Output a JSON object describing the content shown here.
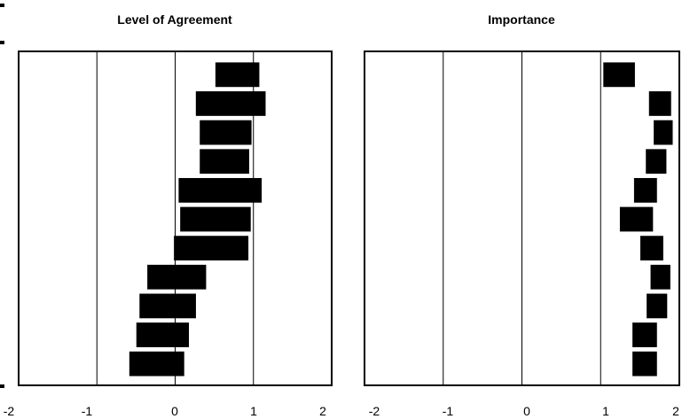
{
  "chart_data": [
    {
      "type": "range-bar",
      "title": "Level of Agreement",
      "xlim": [
        -2,
        2
      ],
      "xticks": [
        "-2",
        "-1",
        "0",
        "1",
        "2"
      ],
      "gridlines_x": [
        -1,
        0,
        1
      ],
      "bars": [
        {
          "start": 0.52,
          "end": 1.07
        },
        {
          "start": 0.27,
          "end": 1.15
        },
        {
          "start": 0.32,
          "end": 0.97
        },
        {
          "start": 0.32,
          "end": 0.94
        },
        {
          "start": 0.05,
          "end": 1.1
        },
        {
          "start": 0.07,
          "end": 0.96
        },
        {
          "start": -0.01,
          "end": 0.93
        },
        {
          "start": -0.35,
          "end": 0.39
        },
        {
          "start": -0.45,
          "end": 0.26
        },
        {
          "start": -0.49,
          "end": 0.17
        },
        {
          "start": -0.58,
          "end": 0.11
        }
      ],
      "color": "#000000"
    },
    {
      "type": "range-bar",
      "title": "Importance",
      "xlim": [
        -2,
        2
      ],
      "xticks": [
        "-2",
        "-1",
        "0",
        "1",
        "2"
      ],
      "gridlines_x": [
        -1,
        0,
        1
      ],
      "bars": [
        {
          "start": 1.04,
          "end": 1.43
        },
        {
          "start": 1.62,
          "end": 1.89
        },
        {
          "start": 1.68,
          "end": 1.91
        },
        {
          "start": 1.58,
          "end": 1.83
        },
        {
          "start": 1.43,
          "end": 1.71
        },
        {
          "start": 1.25,
          "end": 1.66
        },
        {
          "start": 1.51,
          "end": 1.79
        },
        {
          "start": 1.64,
          "end": 1.88
        },
        {
          "start": 1.59,
          "end": 1.84
        },
        {
          "start": 1.41,
          "end": 1.71
        },
        {
          "start": 1.41,
          "end": 1.71
        }
      ],
      "color": "#000000"
    }
  ]
}
